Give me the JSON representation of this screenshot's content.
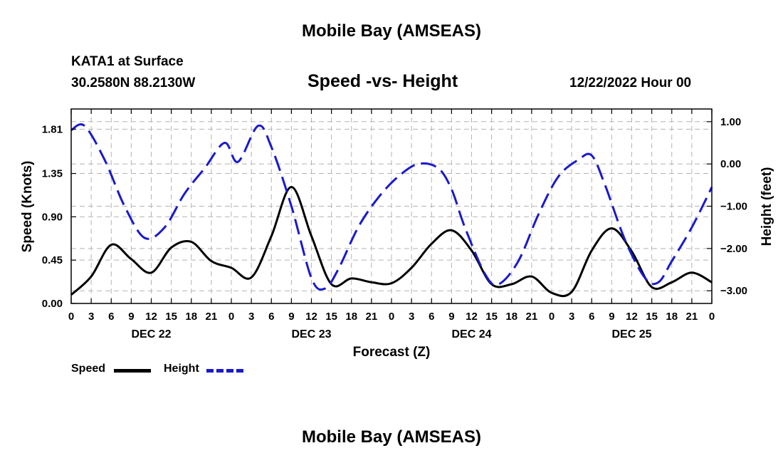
{
  "header": {
    "title": "Mobile Bay (AMSEAS)",
    "station": "KATA1 at Surface",
    "coordinates": "30.2580N  88.2130W",
    "subtitle": "Speed -vs- Height",
    "datetime": "12/22/2022 Hour 00"
  },
  "footer": {
    "title": "Mobile Bay (AMSEAS)"
  },
  "legend": {
    "speed_label": "Speed",
    "height_label": "Height",
    "speed_color": "#000000",
    "height_color": "#1a1acc"
  },
  "chart_data": {
    "type": "line",
    "xlabel": "Forecast (Z)",
    "ylabel_left": "Speed (Knots)",
    "ylabel_right": "Height (feet)",
    "xlim": [
      0,
      96
    ],
    "ylim_left": [
      0,
      2.02
    ],
    "ylim_right": [
      -3.3,
      1.3
    ],
    "yticks_left": [
      "0.00",
      "0.45",
      "0.90",
      "1.35",
      "1.81"
    ],
    "yticks_left_values": [
      0,
      0.45,
      0.9,
      1.35,
      1.81
    ],
    "yticks_right": [
      "1.00",
      "0.00",
      "−1.00",
      "−2.00",
      "−3.00"
    ],
    "yticks_right_values": [
      1,
      0,
      -1,
      -2,
      -3
    ],
    "xtick_labels": [
      "0",
      "3",
      "6",
      "9",
      "12",
      "15",
      "18",
      "21",
      "0",
      "3",
      "6",
      "9",
      "12",
      "15",
      "18",
      "21",
      "0",
      "3",
      "6",
      "9",
      "12",
      "15",
      "18",
      "21",
      "0",
      "3",
      "6",
      "9",
      "12",
      "15",
      "18",
      "21",
      "0"
    ],
    "day_labels": [
      {
        "label": "DEC 22",
        "x": 12
      },
      {
        "label": "DEC 23",
        "x": 36
      },
      {
        "label": "DEC 24",
        "x": 60
      },
      {
        "label": "DEC 25",
        "x": 84
      }
    ],
    "grid": true,
    "series": [
      {
        "name": "Speed",
        "axis": "left",
        "x": [
          0,
          3,
          6,
          9,
          12,
          15,
          18,
          21,
          24,
          27,
          30,
          33,
          36,
          39,
          42,
          45,
          48,
          51,
          54,
          57,
          60,
          63,
          66,
          69,
          72,
          75,
          78,
          81,
          84,
          87,
          90,
          93,
          96
        ],
        "values": [
          0.09,
          0.28,
          0.61,
          0.46,
          0.32,
          0.58,
          0.64,
          0.44,
          0.37,
          0.27,
          0.7,
          1.21,
          0.7,
          0.2,
          0.26,
          0.22,
          0.21,
          0.37,
          0.62,
          0.76,
          0.55,
          0.2,
          0.2,
          0.28,
          0.11,
          0.12,
          0.55,
          0.78,
          0.54,
          0.17,
          0.22,
          0.32,
          0.22
        ]
      },
      {
        "name": "Height",
        "axis": "right",
        "x": [
          0,
          2,
          5,
          8,
          11,
          14,
          17,
          20,
          23,
          25,
          28,
          30,
          33,
          36,
          38,
          40,
          43,
          46,
          49,
          52,
          55,
          57,
          59,
          62,
          64,
          67,
          70,
          73,
          76,
          78,
          80,
          83,
          86,
          88,
          90,
          93,
          96
        ],
        "values": [
          0.8,
          0.9,
          0.1,
          -1.0,
          -1.75,
          -1.5,
          -0.7,
          -0.1,
          0.5,
          0.05,
          0.9,
          0.4,
          -1.0,
          -2.7,
          -2.95,
          -2.5,
          -1.5,
          -0.8,
          -0.3,
          0.0,
          -0.1,
          -0.6,
          -1.5,
          -2.6,
          -2.85,
          -2.3,
          -1.2,
          -0.3,
          0.1,
          0.2,
          -0.5,
          -1.8,
          -2.7,
          -2.8,
          -2.3,
          -1.5,
          -0.55
        ]
      }
    ]
  }
}
